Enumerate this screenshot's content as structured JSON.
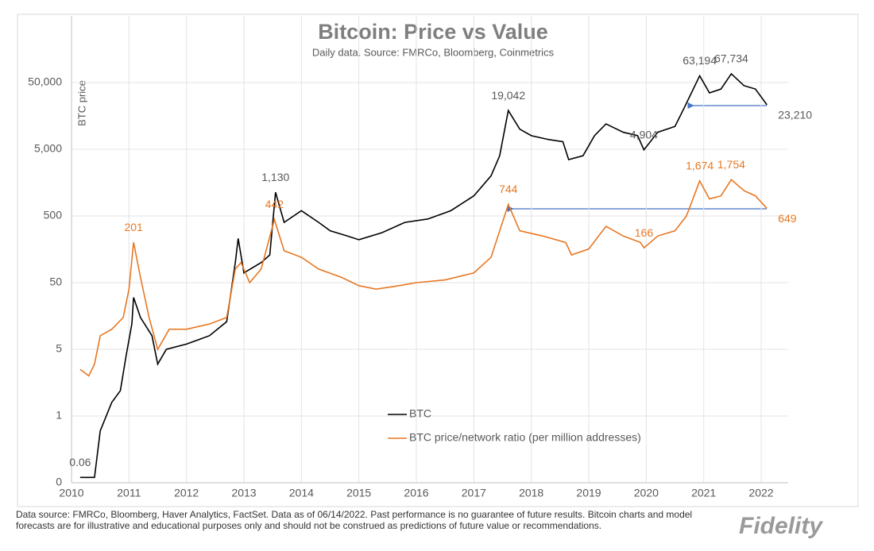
{
  "chart_data": {
    "type": "line",
    "title": "Bitcoin: Price vs Value",
    "subtitle": "Daily data.  Source: FMRCo, Bloomberg, Coinmetrics",
    "y_label": "BTC price",
    "log_y": true,
    "grid": true,
    "xlim": [
      2010,
      2022.47
    ],
    "xticks": [
      2010,
      2011,
      2012,
      2013,
      2014,
      2015,
      2016,
      2017,
      2018,
      2019,
      2020,
      2021,
      2022
    ],
    "ylim": [
      0.05,
      500000
    ],
    "yticks": [
      {
        "value": 0.05,
        "label": "0"
      },
      {
        "value": 0.5,
        "label": "1"
      },
      5,
      50,
      500,
      {
        "value": 5000,
        "label": "5,000"
      },
      {
        "value": 50000,
        "label": "50,000"
      }
    ],
    "series": [
      {
        "name": "BTC",
        "color": "#000000",
        "x": [
          2010.15,
          2010.4,
          2010.5,
          2010.7,
          2010.85,
          2010.95,
          2011.05,
          2011.08,
          2011.2,
          2011.4,
          2011.5,
          2011.65,
          2012.0,
          2012.4,
          2012.7,
          2012.85,
          2012.9,
          2013.0,
          2013.3,
          2013.45,
          2013.55,
          2013.7,
          2014.0,
          2014.3,
          2014.5,
          2014.8,
          2015.0,
          2015.4,
          2015.8,
          2016.2,
          2016.6,
          2017.0,
          2017.3,
          2017.45,
          2017.6,
          2017.8,
          2018.0,
          2018.3,
          2018.55,
          2018.65,
          2018.9,
          2019.1,
          2019.3,
          2019.6,
          2019.85,
          2019.96,
          2020.2,
          2020.5,
          2020.65,
          2020.93,
          2021.1,
          2021.3,
          2021.48,
          2021.7,
          2021.9,
          2022.1
        ],
        "values": [
          0.06,
          0.06,
          0.3,
          0.8,
          1.2,
          4,
          12,
          30,
          15,
          8,
          3,
          5,
          6,
          8,
          13,
          100,
          230,
          70,
          100,
          130,
          1130,
          400,
          600,
          400,
          300,
          250,
          220,
          280,
          400,
          450,
          600,
          1000,
          2000,
          4000,
          19042,
          10000,
          8000,
          7000,
          6500,
          3500,
          4000,
          8000,
          12000,
          9000,
          8000,
          4904,
          9000,
          11000,
          20000,
          63194,
          35000,
          40000,
          67734,
          45000,
          40000,
          23210
        ],
        "value_labels": [
          "0.06",
          null,
          null,
          null,
          null,
          null,
          null,
          null,
          null,
          null,
          null,
          null,
          null,
          null,
          null,
          null,
          null,
          null,
          null,
          null,
          "1,130",
          null,
          null,
          null,
          null,
          null,
          null,
          null,
          null,
          null,
          null,
          null,
          null,
          null,
          "19,042",
          null,
          null,
          null,
          null,
          null,
          null,
          null,
          null,
          null,
          null,
          "4,904",
          null,
          null,
          null,
          "63,194",
          null,
          null,
          "67,734",
          null,
          null,
          "23,210"
        ]
      },
      {
        "name": "BTC price/network ratio (per million addresses)",
        "color": "#e87722",
        "x": [
          2010.15,
          2010.3,
          2010.4,
          2010.5,
          2010.7,
          2010.9,
          2011.0,
          2011.08,
          2011.2,
          2011.35,
          2011.5,
          2011.7,
          2012.0,
          2012.4,
          2012.7,
          2012.85,
          2012.95,
          2013.1,
          2013.3,
          2013.53,
          2013.7,
          2014.0,
          2014.3,
          2014.7,
          2015.0,
          2015.3,
          2015.7,
          2016.0,
          2016.5,
          2017.0,
          2017.3,
          2017.6,
          2017.8,
          2018.2,
          2018.6,
          2018.7,
          2019.0,
          2019.3,
          2019.6,
          2019.9,
          2019.96,
          2020.2,
          2020.5,
          2020.7,
          2020.93,
          2021.1,
          2021.3,
          2021.48,
          2021.7,
          2021.9,
          2022.1
        ],
        "values": [
          2.5,
          2,
          3,
          8,
          10,
          15,
          40,
          201,
          60,
          15,
          5,
          10,
          10,
          12,
          15,
          80,
          100,
          50,
          80,
          442,
          150,
          120,
          80,
          60,
          45,
          40,
          45,
          50,
          55,
          70,
          120,
          744,
          300,
          250,
          200,
          130,
          160,
          350,
          250,
          200,
          166,
          250,
          300,
          500,
          1674,
          900,
          1000,
          1754,
          1200,
          1000,
          649
        ],
        "value_labels": [
          null,
          null,
          null,
          null,
          null,
          null,
          null,
          "201",
          null,
          null,
          null,
          null,
          null,
          null,
          null,
          null,
          null,
          null,
          null,
          "442",
          null,
          null,
          null,
          null,
          null,
          null,
          null,
          null,
          null,
          null,
          null,
          "744",
          null,
          null,
          null,
          null,
          null,
          null,
          null,
          null,
          "166",
          null,
          null,
          null,
          "1,674",
          null,
          null,
          "1,754",
          null,
          null,
          "649"
        ]
      }
    ],
    "footnote": "Data source: FMRCo, Bloomberg, Haver Analytics, FactSet. Data as of 06/14/2022. Past performance is no guarantee of future results. Bitcoin charts and model forecasts are for illustrative and educational purposes only and should not be construed as predictions of future value or recommendations.",
    "brand": "Fidelity"
  }
}
